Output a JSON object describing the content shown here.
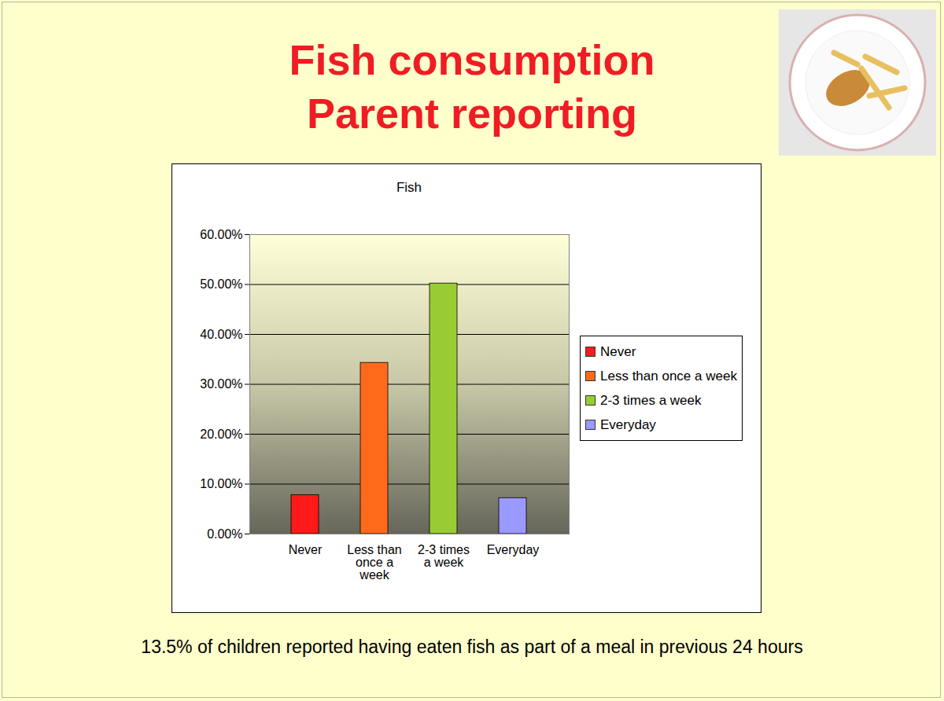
{
  "chart_data": {
    "type": "bar",
    "title": "Fish consumption",
    "subtitle": "Parent reporting",
    "chart_title": "Fish",
    "caption": "13.5% of children reported having eaten fish as part of a meal in previous 24 hours",
    "categories": [
      "Never",
      "Less than once a week",
      "2-3 times a week",
      "Everyday"
    ],
    "values": [
      7.8,
      34.3,
      50.2,
      7.2
    ],
    "colors": [
      "#ff1a1a",
      "#ff6a1a",
      "#99cc33",
      "#9999ff"
    ],
    "ylim": [
      0,
      60
    ],
    "yticks": [
      {
        "value": 0,
        "label": "0.00%"
      },
      {
        "value": 10,
        "label": "10.00%"
      },
      {
        "value": 20,
        "label": "20.00%"
      },
      {
        "value": 30,
        "label": "30.00%"
      },
      {
        "value": 40,
        "label": "40.00%"
      },
      {
        "value": 50,
        "label": "50.00%"
      },
      {
        "value": 60,
        "label": "60.00%"
      }
    ],
    "grid": true,
    "legend": "right"
  }
}
